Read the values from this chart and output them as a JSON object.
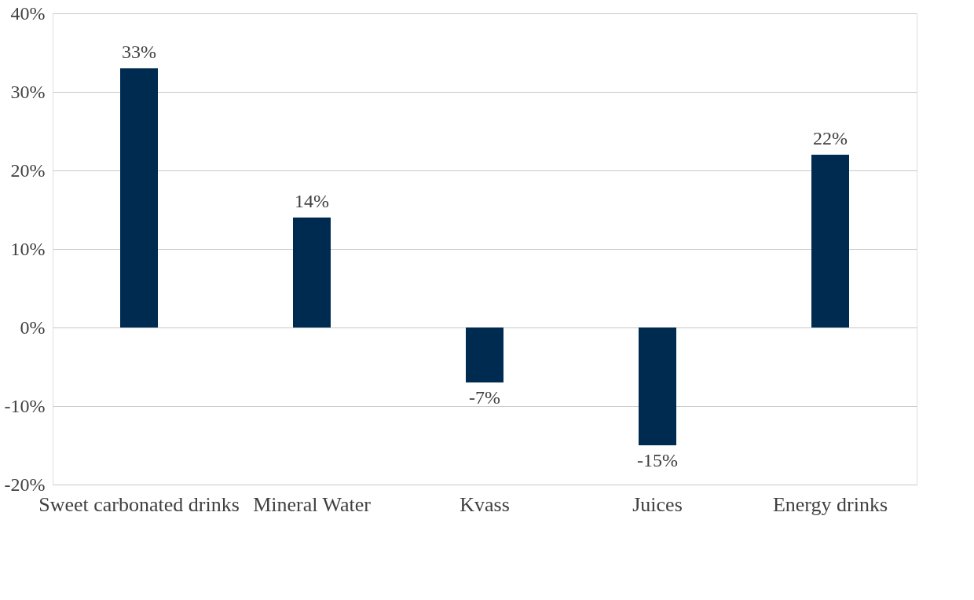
{
  "chart_data": {
    "type": "bar",
    "categories": [
      "Sweet carbonated drinks",
      "Mineral Water",
      "Kvass",
      "Juices",
      "Energy drinks"
    ],
    "values": [
      33,
      14,
      -7,
      -15,
      22
    ],
    "color": "#002b50",
    "value_labels": [
      "33%",
      "14%",
      "-7%",
      "-15%",
      "22%"
    ],
    "ylim": [
      -20,
      40
    ],
    "yticks": [
      {
        "value": -20,
        "label": "-20%"
      },
      {
        "value": -10,
        "label": "-10%"
      },
      {
        "value": 0,
        "label": "0%"
      },
      {
        "value": 10,
        "label": "10%"
      },
      {
        "value": 20,
        "label": "20%"
      },
      {
        "value": 30,
        "label": "30%"
      },
      {
        "value": 40,
        "label": "40%"
      }
    ],
    "grid": "y"
  }
}
